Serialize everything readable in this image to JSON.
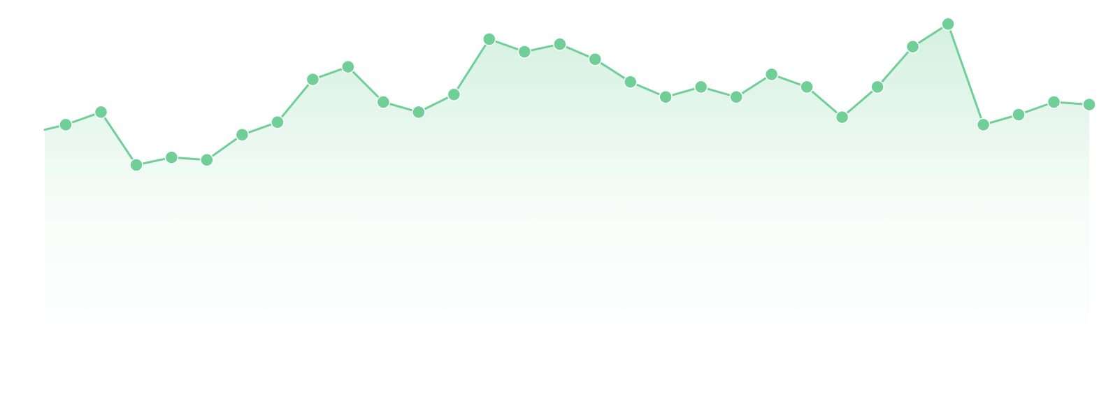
{
  "chart_data": {
    "type": "area",
    "title": "",
    "xlabel": "",
    "ylabel": "",
    "grid": false,
    "legend": "none",
    "x": [
      0,
      1,
      2,
      3,
      4,
      5,
      6,
      7,
      8,
      9,
      10,
      11,
      12,
      13,
      14,
      15,
      16,
      17,
      18,
      19,
      20,
      21,
      22,
      23,
      24,
      25,
      26,
      27,
      28,
      29
    ],
    "xlim": [
      0,
      29
    ],
    "ylim": [
      0,
      100
    ],
    "series": [
      {
        "values": [
          56,
          61,
          40,
          43,
          42,
          52,
          57,
          74,
          79,
          65,
          61,
          68,
          90,
          85,
          88,
          82,
          73,
          67,
          71,
          67,
          76,
          71,
          59,
          71,
          87,
          96,
          56,
          60,
          65,
          64
        ],
        "color": "#6fcf97",
        "line_start": 54,
        "markers": true
      }
    ]
  }
}
